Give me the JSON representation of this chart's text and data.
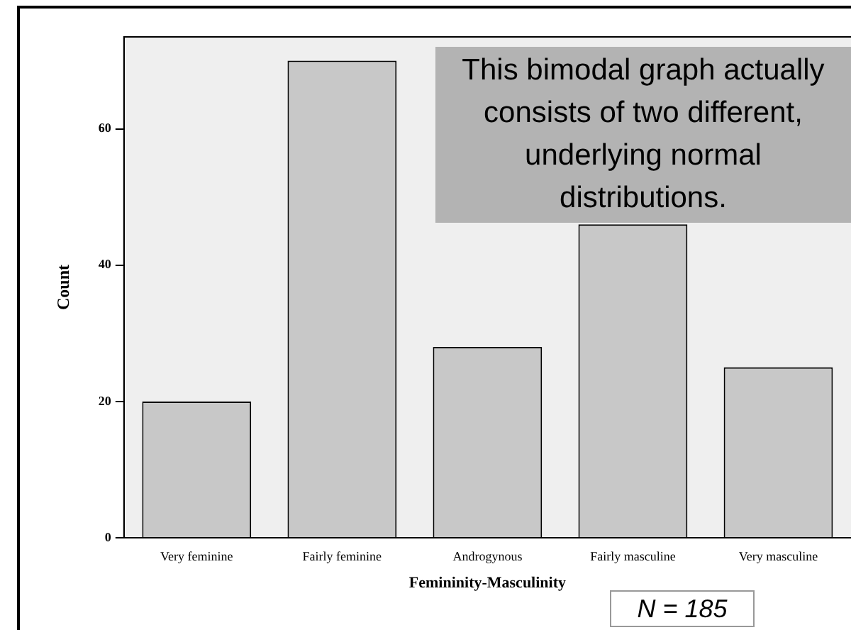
{
  "chart_data": {
    "type": "bar",
    "xlabel": "Femininity-Masculinity",
    "ylabel": "Count",
    "categories": [
      "Very feminine",
      "Fairly feminine",
      "Androgynous",
      "Fairly masculine",
      "Very masculine"
    ],
    "values": [
      20,
      70,
      28,
      46,
      25
    ],
    "color": "#c8c8c8",
    "ylim": [
      0,
      73.5
    ],
    "yticks": [
      0,
      20,
      40,
      60
    ],
    "grid": false,
    "legend": false,
    "annotations": [
      "This bimodal graph actually consists of two different, underlying normal distributions.",
      "N = 185"
    ]
  }
}
